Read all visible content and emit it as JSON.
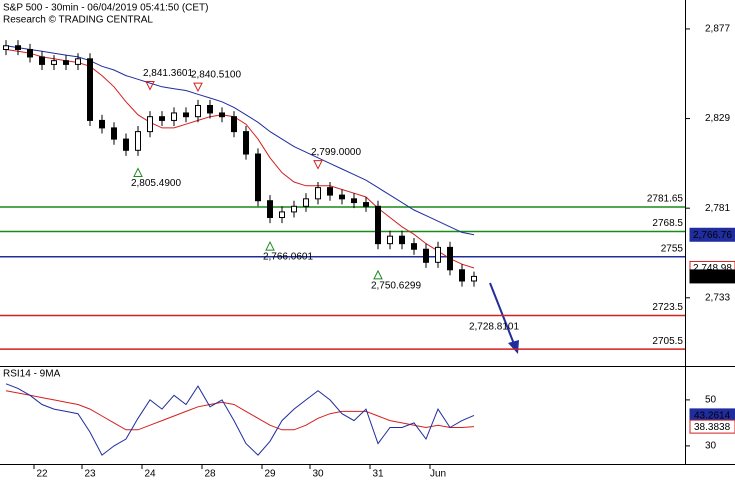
{
  "chart_data": {
    "type": "candlestick",
    "title": "S&P 500 - 30min - 06/04/2019 05:41:50 (CET)",
    "subtitle": "Research © TRADING CENTRAL",
    "categories": [
      null,
      null,
      null,
      "22",
      null,
      null,
      null,
      "23",
      null,
      null,
      null,
      null,
      "24",
      null,
      null,
      null,
      null,
      "28",
      null,
      null,
      null,
      null,
      "29",
      null,
      null,
      null,
      "30",
      null,
      null,
      null,
      null,
      "31",
      null,
      null,
      null,
      null,
      "Jun",
      null,
      null,
      null
    ],
    "open": [
      2866,
      2868,
      2866,
      2862,
      2858,
      2860,
      2858,
      2861,
      2828,
      2824,
      2818,
      2812,
      2822,
      2830,
      2828,
      2832,
      2830,
      2836,
      2832,
      2830,
      2822,
      2810,
      2785,
      2776,
      2779,
      2782,
      2786,
      2792,
      2788,
      2786,
      2784,
      2782,
      2762,
      2766,
      2762,
      2759,
      2752,
      2760,
      2748,
      2742
    ],
    "high": [
      2871,
      2871,
      2869,
      2865,
      2863,
      2863,
      2864,
      2864,
      2831,
      2827,
      2821,
      2825,
      2833,
      2833,
      2835,
      2835,
      2839,
      2839,
      2835,
      2833,
      2825,
      2813,
      2788,
      2782,
      2785,
      2789,
      2795,
      2795,
      2791,
      2789,
      2787,
      2785,
      2769,
      2769,
      2765,
      2762,
      2763,
      2763,
      2751,
      2747
    ],
    "low": [
      2863,
      2863,
      2859,
      2855,
      2855,
      2855,
      2855,
      2825,
      2821,
      2815,
      2809,
      2809,
      2819,
      2825,
      2825,
      2827,
      2827,
      2829,
      2827,
      2819,
      2807,
      2782,
      2773,
      2773,
      2776,
      2779,
      2783,
      2785,
      2783,
      2781,
      2779,
      2759,
      2759,
      2759,
      2756,
      2749,
      2749,
      2745,
      2739,
      2739
    ],
    "close": [
      2868,
      2866,
      2862,
      2858,
      2860,
      2858,
      2861,
      2828,
      2824,
      2818,
      2812,
      2822,
      2830,
      2828,
      2832,
      2830,
      2836,
      2832,
      2830,
      2822,
      2810,
      2785,
      2776,
      2779,
      2782,
      2786,
      2792,
      2788,
      2786,
      2784,
      2782,
      2762,
      2766,
      2762,
      2759,
      2752,
      2760,
      2748,
      2742,
      2744.45
    ],
    "overlays": [
      {
        "color": "#d42020",
        "values": [
          2866,
          2865,
          2864,
          2862,
          2861,
          2860,
          2859,
          2857,
          2852,
          2846,
          2838,
          2831,
          2827,
          2824,
          2824,
          2826,
          2828,
          2830,
          2831,
          2830,
          2826,
          2818,
          2808,
          2800,
          2795,
          2793,
          2793,
          2793,
          2791,
          2789,
          2787,
          2781,
          2776,
          2771,
          2767,
          2762,
          2758,
          2754,
          2751,
          2748.98
        ]
      },
      {
        "color": "#1f2d9e",
        "values": [
          2868,
          2867,
          2866,
          2865,
          2864,
          2863,
          2862,
          2860,
          2857,
          2855,
          2852,
          2850,
          2848,
          2846,
          2845,
          2844,
          2842,
          2840,
          2838,
          2835,
          2831,
          2827,
          2822,
          2818,
          2814,
          2811,
          2808,
          2805,
          2802,
          2799,
          2796,
          2792,
          2788,
          2784,
          2780,
          2777,
          2774,
          2771,
          2768,
          2766.76
        ]
      }
    ],
    "levels": [
      {
        "value": 2781.65,
        "color": "#1a8a1a"
      },
      {
        "value": 2768.5,
        "color": "#1a8a1a"
      },
      {
        "value": 2755,
        "color": "#1f2d9e"
      },
      {
        "value": 2723.5,
        "color": "#d42020"
      },
      {
        "value": 2705.5,
        "color": "#d42020"
      }
    ],
    "annotations": [
      {
        "value": 2841.3601,
        "label": "2,841.3601"
      },
      {
        "value": 2840.51,
        "label": "2,840.5100"
      },
      {
        "value": 2805.49,
        "label": "2,805.4900"
      },
      {
        "value": 2799,
        "label": "2,799.0000"
      },
      {
        "value": 2766.0601,
        "label": "2,766.0601"
      },
      {
        "value": 2750.6299,
        "label": "2,750.6299"
      },
      {
        "value": 2728.8101,
        "label": "2,728.8101"
      }
    ],
    "ylim": [
      2697,
      2892.5
    ],
    "yticks": [
      {
        "value": 2877,
        "label": "2,877"
      },
      {
        "value": 2829,
        "label": "2,829"
      },
      {
        "value": 2781,
        "label": "2,781"
      },
      {
        "value": 2733,
        "label": "2,733"
      }
    ],
    "price_tags": [
      {
        "value": 2766.76,
        "label": "2,766.76",
        "color": "#1f2d9e"
      },
      {
        "value": 2748.98,
        "label": "2,748.98",
        "color": "#d42020"
      },
      {
        "value": 2744.45,
        "label": "2,744.45",
        "color": "#000000"
      }
    ],
    "rsi": {
      "title": "RSI14 - 9MA",
      "values": [
        57,
        55,
        52,
        48,
        46,
        45,
        44,
        36,
        26,
        30,
        33,
        42,
        50,
        46,
        52,
        48,
        56,
        47,
        50,
        41,
        31,
        26,
        32,
        41,
        46,
        50,
        54,
        50,
        44,
        41,
        46,
        31,
        38,
        38,
        40,
        33,
        46,
        38,
        41,
        43.2614
      ],
      "ma": [
        54,
        53,
        52,
        51,
        50,
        49,
        48,
        46,
        43,
        40,
        37,
        37,
        39,
        41,
        43,
        45,
        47,
        48,
        49,
        48,
        45,
        42,
        39,
        37,
        37,
        39,
        42,
        44,
        45,
        45,
        45,
        43,
        41,
        40,
        39,
        38,
        39,
        38,
        38,
        38.3838
      ],
      "color": "#1f2d9e",
      "ma_color": "#d42020",
      "ylim": [
        23,
        64.3
      ],
      "yticks": [
        50,
        30
      ],
      "tags": [
        {
          "value": 43.2614,
          "color": "#1f2d9e"
        },
        {
          "value": 38.3838,
          "color": "#d42020"
        }
      ]
    }
  }
}
